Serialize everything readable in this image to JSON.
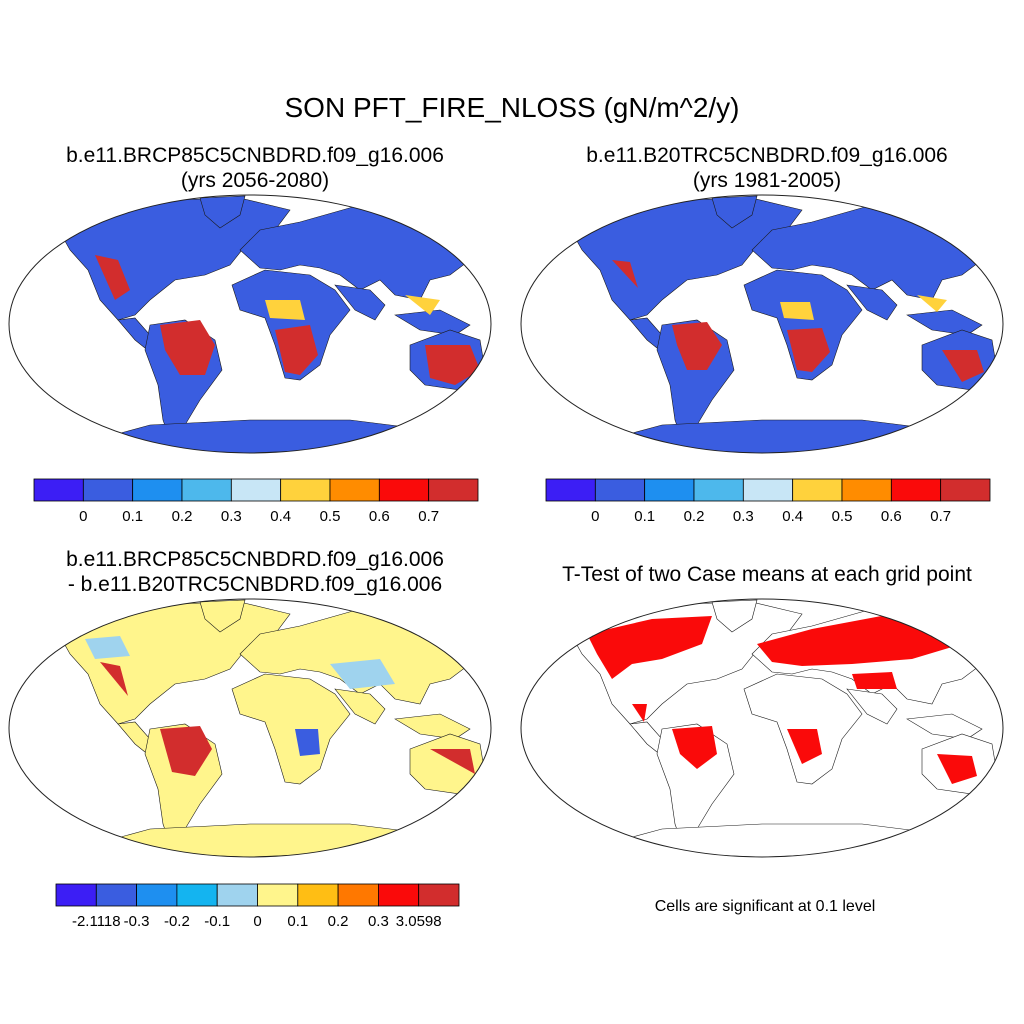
{
  "figure": {
    "title": "SON PFT_FIRE_NLOSS (gN/m^2/y)"
  },
  "panels": [
    {
      "id": "case1",
      "title_line1": "b.e11.BRCP85C5CNBDRD.f09_g16.006",
      "title_line2": "(yrs 2056-2080)"
    },
    {
      "id": "case2",
      "title_line1": "b.e11.B20TRC5CNBDRD.f09_g16.006",
      "title_line2": "(yrs 1981-2005)"
    },
    {
      "id": "diff",
      "title_line1": "b.e11.BRCP85C5CNBDRD.f09_g16.006",
      "title_line2": "- b.e11.B20TRC5CNBDRD.f09_g16.006"
    },
    {
      "id": "ttest",
      "title_line1": "T-Test of two Case means at each grid point",
      "title_line2": ""
    }
  ],
  "colorbars": {
    "absolute": {
      "colors": [
        "#3c1ef5",
        "#3a5de0",
        "#1e8ff0",
        "#4db8ec",
        "#c8e6f6",
        "#ffd23c",
        "#ff8c00",
        "#fa0a0a",
        "#d22d2d"
      ],
      "labels": [
        "0",
        "0.1",
        "0.2",
        "0.3",
        "0.4",
        "0.5",
        "0.6",
        "0.7"
      ]
    },
    "difference": {
      "colors": [
        "#3c1ef5",
        "#3a5de0",
        "#1e8ff0",
        "#14b4f0",
        "#9fd3ee",
        "#fff58c",
        "#ffbe14",
        "#ff7800",
        "#fa0a0a",
        "#d22d2d"
      ],
      "labels": [
        "-2.1118",
        "-0.3",
        "-0.2",
        "-0.1",
        "0",
        "0.1",
        "0.2",
        "0.3",
        "3.0598"
      ]
    }
  },
  "note": "Cells are significant at 0.1 level",
  "colors": {
    "low_land": "#3a5de0",
    "fire_high": "#d22d2d",
    "diff_land": "#fff58c",
    "significant": "#fa0a0a"
  }
}
